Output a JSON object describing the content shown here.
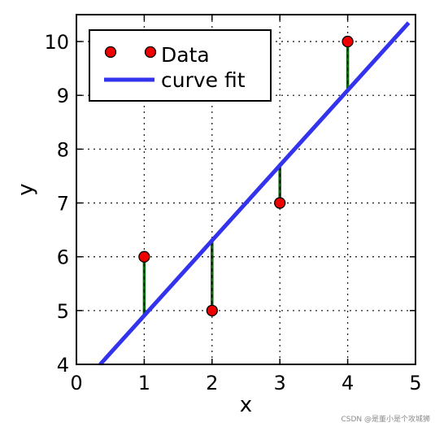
{
  "chart_data": {
    "type": "scatter",
    "title": "",
    "xlabel": "x",
    "ylabel": "y",
    "xlim": [
      0,
      5
    ],
    "ylim": [
      4,
      10.5
    ],
    "xticks": [
      "0",
      "1",
      "2",
      "3",
      "4",
      "5"
    ],
    "yticks": [
      "4",
      "5",
      "6",
      "7",
      "8",
      "9",
      "10"
    ],
    "grid": true,
    "legend_position": "top-left",
    "series": [
      {
        "name": "Data",
        "kind": "points",
        "x": [
          1,
          2,
          3,
          4
        ],
        "y": [
          6,
          5,
          7,
          10
        ],
        "color": "#ee0000"
      },
      {
        "name": "curve fit",
        "kind": "line",
        "x": [
          0.35,
          4.9
        ],
        "y": [
          4.0,
          10.35
        ],
        "color": "#3333ee"
      }
    ],
    "residuals": {
      "color": "#116611",
      "from_y": [
        6,
        5,
        7,
        10
      ],
      "to_y": [
        4.93,
        6.33,
        7.73,
        9.13
      ]
    }
  },
  "watermark": "CSDN @是董小是个攻城狮"
}
